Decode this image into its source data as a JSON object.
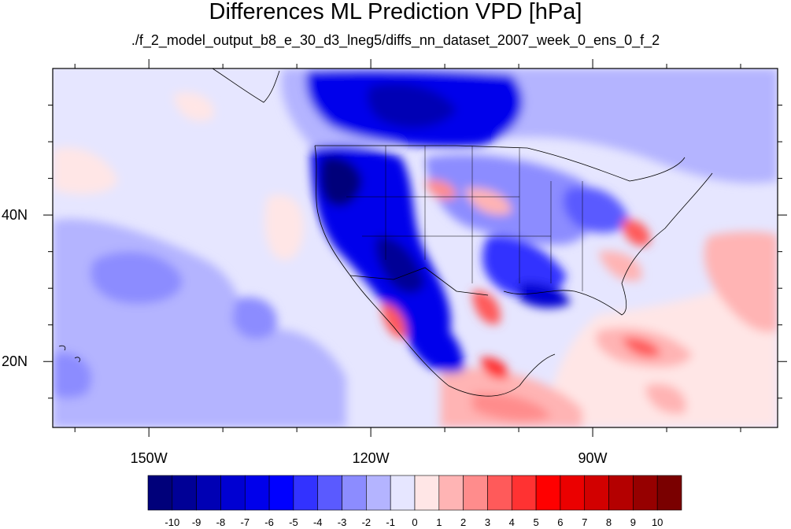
{
  "title": "Differences ML Prediction VPD [hPa]",
  "subtitle": "./f_2_model_output_b8_e_30_d3_lneg5/diffs_nn_dataset_2007_week_0_ens_0_f_2",
  "map": {
    "lon_range": [
      -163,
      -65
    ],
    "lat_range": [
      11,
      60
    ],
    "lon_ticks": [
      {
        "value": -150,
        "label": "150W"
      },
      {
        "value": -120,
        "label": "120W"
      },
      {
        "value": -90,
        "label": "90W"
      }
    ],
    "lat_ticks": [
      {
        "value": 40,
        "label": "40N"
      },
      {
        "value": 20,
        "label": "20N"
      }
    ]
  },
  "colorbar": {
    "labels": [
      "-10",
      "-9",
      "-8",
      "-7",
      "-6",
      "-5",
      "-4",
      "-3",
      "-2",
      "-1",
      "0",
      "1",
      "2",
      "3",
      "4",
      "5",
      "6",
      "7",
      "8",
      "9",
      "10"
    ],
    "colors": [
      "#00007a",
      "#000096",
      "#0000b4",
      "#0000d2",
      "#0000eb",
      "#0000ff",
      "#3232ff",
      "#5a5aff",
      "#8c8cff",
      "#b4b4ff",
      "#e6e6ff",
      "#ffe6e6",
      "#ffb4b4",
      "#ff8c8c",
      "#ff5a5a",
      "#ff3232",
      "#ff0000",
      "#eb0000",
      "#d20000",
      "#b40000",
      "#960000",
      "#7a0000"
    ]
  }
}
